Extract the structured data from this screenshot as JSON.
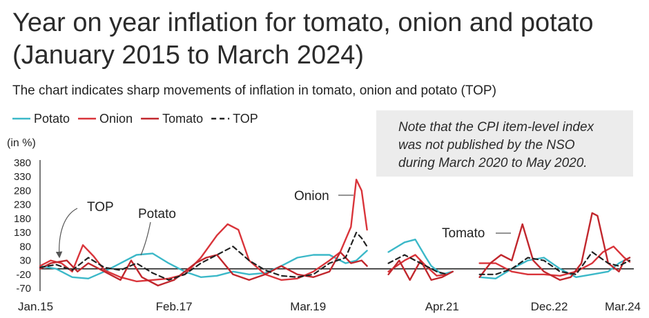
{
  "title_lines": [
    "Year on year inflation for tomato, onion and potato",
    "(January 2015 to March 2024)"
  ],
  "subtitle": "The chart indicates sharp movements of inflation in tomato, onion and potato (TOP)",
  "note_lines": [
    "Note that the CPI item-level index",
    "was not published by the NSO",
    "during March 2020 to May 2020."
  ],
  "colors": {
    "potato": "#3bb8c8",
    "onion": "#d9343a",
    "tomato": "#c1272d",
    "top": "#222222",
    "axis": "#222222"
  },
  "chart_data": {
    "type": "line",
    "ylabel": "(in %)",
    "ylim": [
      -70,
      380
    ],
    "yticks": [
      380,
      330,
      280,
      230,
      180,
      130,
      80,
      30,
      -20,
      -70
    ],
    "xlim": [
      "2015-01",
      "2024-03"
    ],
    "xtick_labels": [
      {
        "label": "Jan.15",
        "date": "2015-01"
      },
      {
        "label": "Feb.17",
        "date": "2017-02"
      },
      {
        "label": "Mar.19",
        "date": "2019-03"
      },
      {
        "label": "Apr.21",
        "date": "2021-04"
      },
      {
        "label": "Dec.22",
        "date": "2022-12"
      },
      {
        "label": "Mar.24",
        "date": "2024-03"
      }
    ],
    "legend": [
      {
        "key": "potato",
        "label": "Potato",
        "dash": false
      },
      {
        "key": "onion",
        "label": "Onion",
        "dash": false
      },
      {
        "key": "tomato",
        "label": "Tomato",
        "dash": false
      },
      {
        "key": "top",
        "label": "TOP",
        "dash": true
      }
    ],
    "annotations": [
      {
        "key": "top",
        "text": "TOP"
      },
      {
        "key": "potato",
        "text": "Potato"
      },
      {
        "key": "onion",
        "text": "Onion"
      },
      {
        "key": "tomato",
        "text": "Tomato"
      }
    ],
    "series": [
      {
        "key": "potato",
        "segments": [
          [
            [
              "2015-01",
              10
            ],
            [
              "2015-04",
              0
            ],
            [
              "2015-07",
              -30
            ],
            [
              "2015-10",
              -35
            ],
            [
              "2016-01",
              -10
            ],
            [
              "2016-04",
              20
            ],
            [
              "2016-07",
              50
            ],
            [
              "2016-10",
              55
            ],
            [
              "2017-01",
              20
            ],
            [
              "2017-04",
              -10
            ],
            [
              "2017-07",
              -30
            ],
            [
              "2017-10",
              -25
            ],
            [
              "2018-01",
              -10
            ],
            [
              "2018-04",
              -20
            ],
            [
              "2018-07",
              -15
            ],
            [
              "2018-10",
              10
            ],
            [
              "2019-01",
              40
            ],
            [
              "2019-04",
              50
            ],
            [
              "2019-07",
              50
            ],
            [
              "2019-10",
              20
            ],
            [
              "2019-12",
              30
            ],
            [
              "2020-02",
              65
            ]
          ],
          [
            [
              "2020-06",
              60
            ],
            [
              "2020-09",
              95
            ],
            [
              "2020-11",
              105
            ],
            [
              "2021-01",
              40
            ],
            [
              "2021-02",
              10
            ],
            [
              "2021-04",
              -20
            ],
            [
              "2021-06",
              -10
            ]
          ],
          [
            [
              "2021-11",
              -30
            ],
            [
              "2022-02",
              -35
            ],
            [
              "2022-05",
              0
            ],
            [
              "2022-08",
              30
            ],
            [
              "2022-11",
              40
            ],
            [
              "2023-02",
              0
            ],
            [
              "2023-05",
              -30
            ],
            [
              "2023-08",
              -20
            ],
            [
              "2023-11",
              -10
            ],
            [
              "2024-01",
              20
            ],
            [
              "2024-03",
              40
            ]
          ]
        ]
      },
      {
        "key": "onion",
        "segments": [
          [
            [
              "2015-01",
              10
            ],
            [
              "2015-03",
              30
            ],
            [
              "2015-05",
              20
            ],
            [
              "2015-07",
              -10
            ],
            [
              "2015-09",
              85
            ],
            [
              "2015-11",
              45
            ],
            [
              "2016-01",
              -5
            ],
            [
              "2016-04",
              -30
            ],
            [
              "2016-07",
              -45
            ],
            [
              "2016-10",
              -40
            ],
            [
              "2017-01",
              -35
            ],
            [
              "2017-04",
              -20
            ],
            [
              "2017-07",
              40
            ],
            [
              "2017-10",
              120
            ],
            [
              "2017-12",
              160
            ],
            [
              "2018-02",
              140
            ],
            [
              "2018-04",
              30
            ],
            [
              "2018-07",
              -20
            ],
            [
              "2018-10",
              -40
            ],
            [
              "2019-01",
              -35
            ],
            [
              "2019-04",
              -10
            ],
            [
              "2019-07",
              30
            ],
            [
              "2019-09",
              60
            ],
            [
              "2019-11",
              150
            ],
            [
              "2019-12",
              320
            ],
            [
              "2020-01",
              280
            ],
            [
              "2020-02",
              140
            ]
          ],
          [
            [
              "2020-06",
              -10
            ],
            [
              "2020-09",
              30
            ],
            [
              "2020-11",
              50
            ],
            [
              "2021-01",
              10
            ],
            [
              "2021-03",
              -25
            ],
            [
              "2021-05",
              -20
            ]
          ],
          [
            [
              "2021-11",
              20
            ],
            [
              "2022-02",
              20
            ],
            [
              "2022-05",
              -10
            ],
            [
              "2022-08",
              -20
            ],
            [
              "2022-11",
              -20
            ],
            [
              "2023-02",
              -25
            ],
            [
              "2023-05",
              -10
            ],
            [
              "2023-08",
              20
            ],
            [
              "2023-10",
              60
            ],
            [
              "2023-12",
              80
            ],
            [
              "2024-02",
              40
            ],
            [
              "2024-03",
              25
            ]
          ]
        ]
      },
      {
        "key": "tomato",
        "segments": [
          [
            [
              "2015-01",
              0
            ],
            [
              "2015-03",
              20
            ],
            [
              "2015-06",
              30
            ],
            [
              "2015-08",
              -10
            ],
            [
              "2015-10",
              20
            ],
            [
              "2016-01",
              -10
            ],
            [
              "2016-04",
              -40
            ],
            [
              "2016-06",
              30
            ],
            [
              "2016-08",
              -30
            ],
            [
              "2016-11",
              -60
            ],
            [
              "2017-02",
              -40
            ],
            [
              "2017-04",
              -10
            ],
            [
              "2017-06",
              20
            ],
            [
              "2017-08",
              40
            ],
            [
              "2017-10",
              50
            ],
            [
              "2018-01",
              -20
            ],
            [
              "2018-04",
              -40
            ],
            [
              "2018-07",
              -20
            ],
            [
              "2018-10",
              10
            ],
            [
              "2019-01",
              -20
            ],
            [
              "2019-04",
              -30
            ],
            [
              "2019-07",
              -10
            ],
            [
              "2019-09",
              60
            ],
            [
              "2019-11",
              20
            ],
            [
              "2020-01",
              30
            ],
            [
              "2020-02",
              10
            ]
          ],
          [
            [
              "2020-06",
              -20
            ],
            [
              "2020-08",
              30
            ],
            [
              "2020-10",
              -40
            ],
            [
              "2020-12",
              30
            ],
            [
              "2021-02",
              -40
            ],
            [
              "2021-04",
              -30
            ],
            [
              "2021-06",
              -10
            ]
          ],
          [
            [
              "2021-11",
              -30
            ],
            [
              "2022-01",
              20
            ],
            [
              "2022-03",
              50
            ],
            [
              "2022-05",
              30
            ],
            [
              "2022-07",
              160
            ],
            [
              "2022-09",
              30
            ],
            [
              "2022-11",
              -10
            ],
            [
              "2023-02",
              -40
            ],
            [
              "2023-04",
              -30
            ],
            [
              "2023-06",
              20
            ],
            [
              "2023-08",
              200
            ],
            [
              "2023-09",
              190
            ],
            [
              "2023-11",
              20
            ],
            [
              "2024-01",
              -10
            ],
            [
              "2024-02",
              30
            ],
            [
              "2024-03",
              40
            ]
          ]
        ]
      },
      {
        "key": "top",
        "segments": [
          [
            [
              "2015-01",
              5
            ],
            [
              "2015-04",
              15
            ],
            [
              "2015-07",
              -5
            ],
            [
              "2015-10",
              40
            ],
            [
              "2016-01",
              5
            ],
            [
              "2016-04",
              -5
            ],
            [
              "2016-07",
              20
            ],
            [
              "2016-10",
              -15
            ],
            [
              "2017-01",
              -40
            ],
            [
              "2017-04",
              -20
            ],
            [
              "2017-07",
              20
            ],
            [
              "2017-10",
              50
            ],
            [
              "2018-01",
              80
            ],
            [
              "2018-04",
              30
            ],
            [
              "2018-07",
              -5
            ],
            [
              "2018-10",
              -25
            ],
            [
              "2019-01",
              -30
            ],
            [
              "2019-04",
              -20
            ],
            [
              "2019-07",
              20
            ],
            [
              "2019-10",
              40
            ],
            [
              "2019-12",
              130
            ],
            [
              "2020-01",
              110
            ],
            [
              "2020-02",
              80
            ]
          ],
          [
            [
              "2020-06",
              20
            ],
            [
              "2020-09",
              50
            ],
            [
              "2020-11",
              30
            ],
            [
              "2021-01",
              10
            ],
            [
              "2021-03",
              -10
            ],
            [
              "2021-05",
              -20
            ]
          ],
          [
            [
              "2021-11",
              -20
            ],
            [
              "2022-02",
              -20
            ],
            [
              "2022-05",
              0
            ],
            [
              "2022-08",
              40
            ],
            [
              "2022-11",
              30
            ],
            [
              "2023-02",
              -10
            ],
            [
              "2023-05",
              -20
            ],
            [
              "2023-08",
              60
            ],
            [
              "2023-11",
              20
            ],
            [
              "2024-01",
              10
            ],
            [
              "2024-03",
              30
            ]
          ]
        ]
      }
    ]
  }
}
